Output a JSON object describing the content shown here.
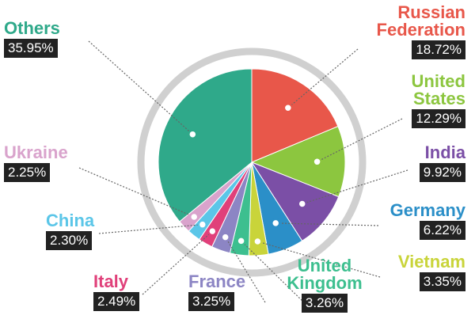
{
  "chart_data": {
    "type": "pie",
    "categories": [
      "Russian Federation",
      "United States",
      "India",
      "Germany",
      "Vietnam",
      "United Kingdom",
      "France",
      "Italy",
      "China",
      "Ukraine",
      "Others"
    ],
    "values": [
      18.72,
      12.29,
      9.92,
      6.22,
      3.35,
      3.26,
      3.25,
      2.49,
      2.3,
      2.25,
      35.95
    ],
    "value_labels": [
      "18.72%",
      "12.29%",
      "9.92%",
      "6.22%",
      "3.35%",
      "3.26%",
      "3.25%",
      "2.49%",
      "2.30%",
      "2.25%",
      "35.95%"
    ],
    "colors": [
      "#e8574a",
      "#8cc63f",
      "#7b4fa6",
      "#2b8fc8",
      "#c9d43a",
      "#3dbf8f",
      "#8c85c4",
      "#e0407a",
      "#5bc6e8",
      "#d9a3cc",
      "#2fa98a"
    ]
  }
}
